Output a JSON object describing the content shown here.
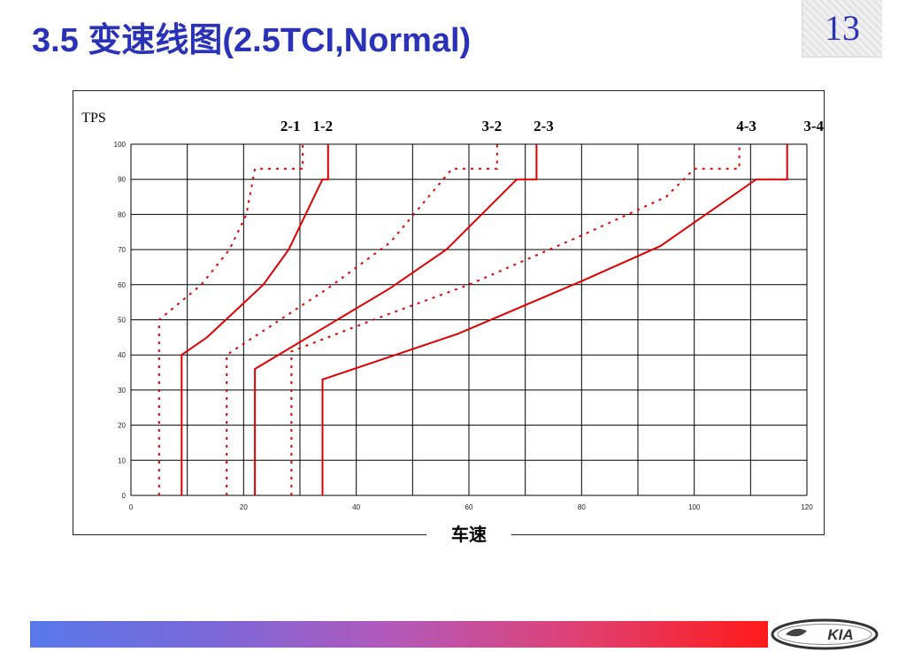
{
  "slide": {
    "title": "3.5 变速线图(2.5TCI,Normal)",
    "page_number": "13",
    "logo_text": "KIA"
  },
  "colors": {
    "title": "#2a33b8",
    "line": "#e00000",
    "grid": "#000000"
  },
  "chart_data": {
    "type": "line",
    "title": "",
    "xlabel": "车速",
    "ylabel": "TPS",
    "xlim": [
      0,
      120
    ],
    "ylim": [
      0,
      100
    ],
    "x_ticks": [
      0,
      20,
      40,
      60,
      80,
      100,
      120
    ],
    "y_ticks": [
      0,
      10,
      20,
      30,
      40,
      50,
      60,
      70,
      80,
      90,
      100
    ],
    "grid": true,
    "series": [
      {
        "name": "1-2",
        "style": "solid",
        "points": [
          [
            9,
            0
          ],
          [
            9,
            40
          ],
          [
            13.5,
            45
          ],
          [
            23.5,
            60
          ],
          [
            28,
            70
          ],
          [
            34,
            90
          ],
          [
            35,
            90
          ],
          [
            35,
            100
          ]
        ]
      },
      {
        "name": "2-1",
        "style": "dashed",
        "points": [
          [
            5,
            0
          ],
          [
            5,
            50
          ],
          [
            12.5,
            60
          ],
          [
            17.5,
            70
          ],
          [
            20.5,
            80
          ],
          [
            22,
            93
          ],
          [
            30.5,
            93
          ],
          [
            30.5,
            100
          ]
        ]
      },
      {
        "name": "2-3",
        "style": "solid",
        "points": [
          [
            22,
            0
          ],
          [
            22,
            36
          ],
          [
            46,
            59
          ],
          [
            56,
            70
          ],
          [
            68.5,
            90
          ],
          [
            72,
            90
          ],
          [
            72,
            100
          ]
        ]
      },
      {
        "name": "3-2",
        "style": "dashed",
        "points": [
          [
            17,
            0
          ],
          [
            17,
            40
          ],
          [
            35,
            59
          ],
          [
            46,
            72
          ],
          [
            57,
            93
          ],
          [
            65,
            93
          ],
          [
            65,
            100
          ]
        ]
      },
      {
        "name": "3-4",
        "style": "solid",
        "points": [
          [
            34,
            0
          ],
          [
            34,
            33
          ],
          [
            58,
            46
          ],
          [
            80,
            61
          ],
          [
            94,
            71
          ],
          [
            111,
            90
          ],
          [
            116.5,
            90
          ],
          [
            116.5,
            100
          ]
        ]
      },
      {
        "name": "4-3",
        "style": "dashed",
        "points": [
          [
            28.5,
            0
          ],
          [
            28.5,
            41
          ],
          [
            43,
            50
          ],
          [
            60,
            60
          ],
          [
            80,
            74
          ],
          [
            95,
            85
          ],
          [
            100,
            93
          ],
          [
            108,
            93
          ],
          [
            108,
            100
          ]
        ]
      }
    ],
    "top_labels": [
      "2-1",
      "1-2",
      "3-2",
      "2-3",
      "4-3",
      "3-4"
    ]
  }
}
